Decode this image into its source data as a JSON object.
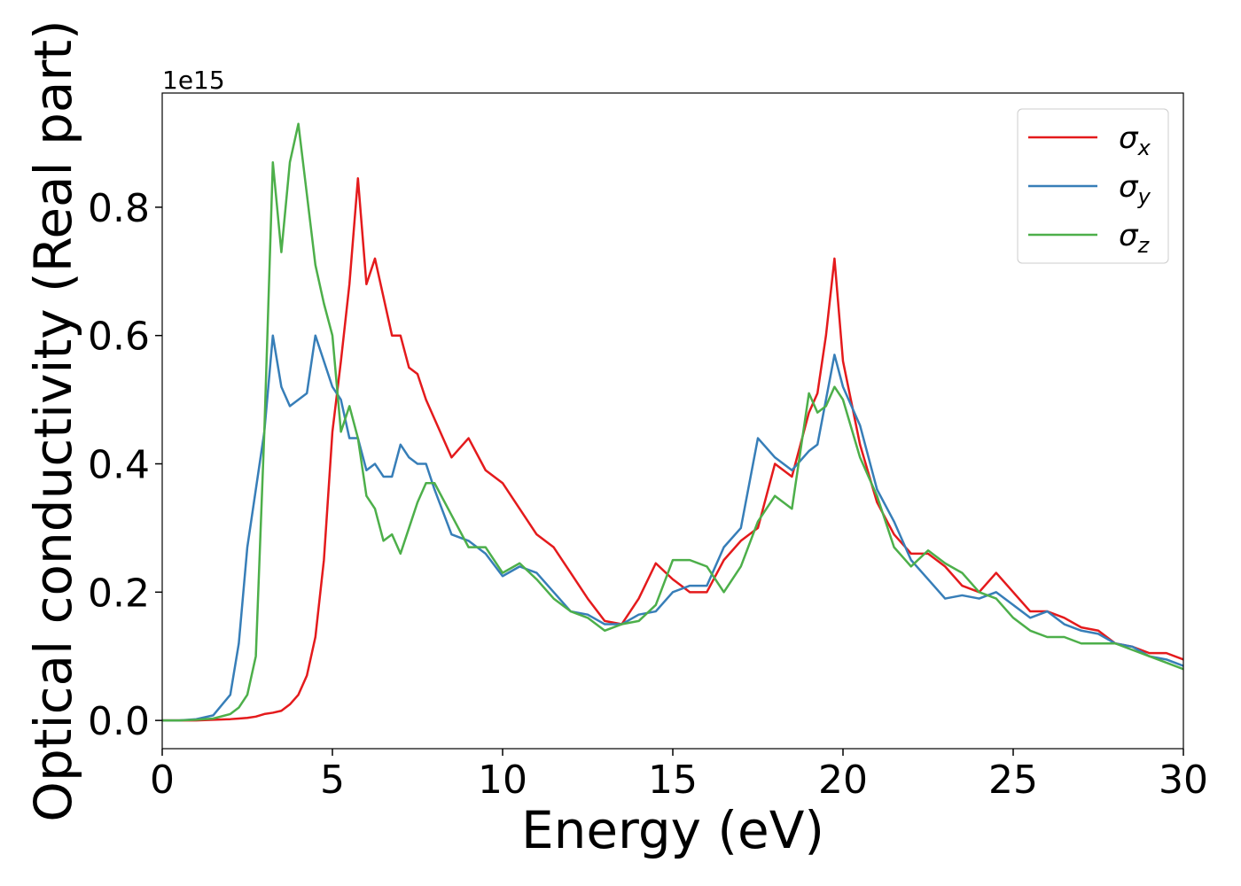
{
  "chart_data": {
    "type": "line",
    "xlabel": "Energy (eV)",
    "ylabel": "Optical conductivity (Real part)",
    "y_offset_label": "1e15",
    "xlim": [
      0,
      30
    ],
    "xticks": [
      0,
      5,
      10,
      15,
      20,
      25,
      30
    ],
    "ylim": [
      -0.044,
      0.978
    ],
    "yticks": [
      {
        "value": 0,
        "label": "0.0"
      },
      {
        "value": 0.2,
        "label": "0.2"
      },
      {
        "value": 0.4,
        "label": "0.4"
      },
      {
        "value": 0.6,
        "label": "0.6"
      },
      {
        "value": 0.8,
        "label": "0.8"
      }
    ],
    "grid": false,
    "legend": "upper right",
    "x": [
      0,
      0.5,
      1,
      1.5,
      2,
      2.25,
      2.5,
      2.75,
      3,
      3.25,
      3.5,
      3.75,
      4,
      4.25,
      4.5,
      4.75,
      5,
      5.25,
      5.5,
      5.75,
      6,
      6.25,
      6.5,
      6.75,
      7,
      7.25,
      7.5,
      7.75,
      8,
      8.5,
      9,
      9.5,
      10,
      10.5,
      11,
      11.5,
      12,
      12.5,
      13,
      13.5,
      14,
      14.5,
      15,
      15.5,
      16,
      16.5,
      17,
      17.5,
      18,
      18.5,
      19,
      19.25,
      19.5,
      19.75,
      20,
      20.5,
      21,
      21.5,
      22,
      22.5,
      23,
      23.5,
      24,
      24.5,
      25,
      25.5,
      26,
      26.5,
      27,
      27.5,
      28,
      28.5,
      29,
      29.5,
      30
    ],
    "series": [
      {
        "name": "σx",
        "color": "#e41a1c",
        "values": [
          0,
          0,
          0,
          0.001,
          0.002,
          0.003,
          0.004,
          0.006,
          0.01,
          0.012,
          0.015,
          0.025,
          0.04,
          0.07,
          0.13,
          0.25,
          0.45,
          0.56,
          0.68,
          0.845,
          0.68,
          0.72,
          0.66,
          0.6,
          0.6,
          0.55,
          0.54,
          0.5,
          0.47,
          0.41,
          0.44,
          0.39,
          0.37,
          0.33,
          0.29,
          0.27,
          0.23,
          0.19,
          0.155,
          0.15,
          0.19,
          0.245,
          0.22,
          0.2,
          0.2,
          0.25,
          0.28,
          0.3,
          0.4,
          0.38,
          0.48,
          0.51,
          0.6,
          0.72,
          0.56,
          0.43,
          0.34,
          0.29,
          0.26,
          0.26,
          0.24,
          0.21,
          0.2,
          0.23,
          0.2,
          0.17,
          0.17,
          0.16,
          0.145,
          0.14,
          0.12,
          0.115,
          0.105,
          0.105,
          0.095
        ]
      },
      {
        "name": "σy",
        "color": "#377eb8",
        "values": [
          0,
          0,
          0.002,
          0.008,
          0.04,
          0.12,
          0.27,
          0.36,
          0.45,
          0.6,
          0.52,
          0.49,
          0.5,
          0.51,
          0.6,
          0.56,
          0.52,
          0.5,
          0.44,
          0.44,
          0.39,
          0.4,
          0.38,
          0.38,
          0.43,
          0.41,
          0.4,
          0.4,
          0.36,
          0.29,
          0.28,
          0.26,
          0.225,
          0.24,
          0.23,
          0.2,
          0.17,
          0.165,
          0.15,
          0.15,
          0.165,
          0.17,
          0.2,
          0.21,
          0.21,
          0.27,
          0.3,
          0.44,
          0.41,
          0.39,
          0.42,
          0.43,
          0.5,
          0.57,
          0.52,
          0.46,
          0.36,
          0.31,
          0.25,
          0.22,
          0.19,
          0.195,
          0.19,
          0.2,
          0.18,
          0.16,
          0.17,
          0.15,
          0.14,
          0.135,
          0.12,
          0.115,
          0.1,
          0.095,
          0.085
        ]
      },
      {
        "name": "σz",
        "color": "#4daf4a",
        "values": [
          0,
          0,
          0.001,
          0.003,
          0.01,
          0.02,
          0.04,
          0.1,
          0.45,
          0.87,
          0.73,
          0.87,
          0.93,
          0.82,
          0.71,
          0.65,
          0.6,
          0.45,
          0.49,
          0.44,
          0.35,
          0.33,
          0.28,
          0.29,
          0.26,
          0.3,
          0.34,
          0.37,
          0.37,
          0.32,
          0.27,
          0.27,
          0.23,
          0.245,
          0.22,
          0.19,
          0.17,
          0.16,
          0.14,
          0.15,
          0.155,
          0.18,
          0.25,
          0.25,
          0.24,
          0.2,
          0.24,
          0.31,
          0.35,
          0.33,
          0.51,
          0.48,
          0.49,
          0.52,
          0.5,
          0.41,
          0.35,
          0.27,
          0.24,
          0.265,
          0.245,
          0.23,
          0.2,
          0.19,
          0.16,
          0.14,
          0.13,
          0.13,
          0.12,
          0.12,
          0.12,
          0.11,
          0.1,
          0.09,
          0.08
        ]
      }
    ]
  }
}
